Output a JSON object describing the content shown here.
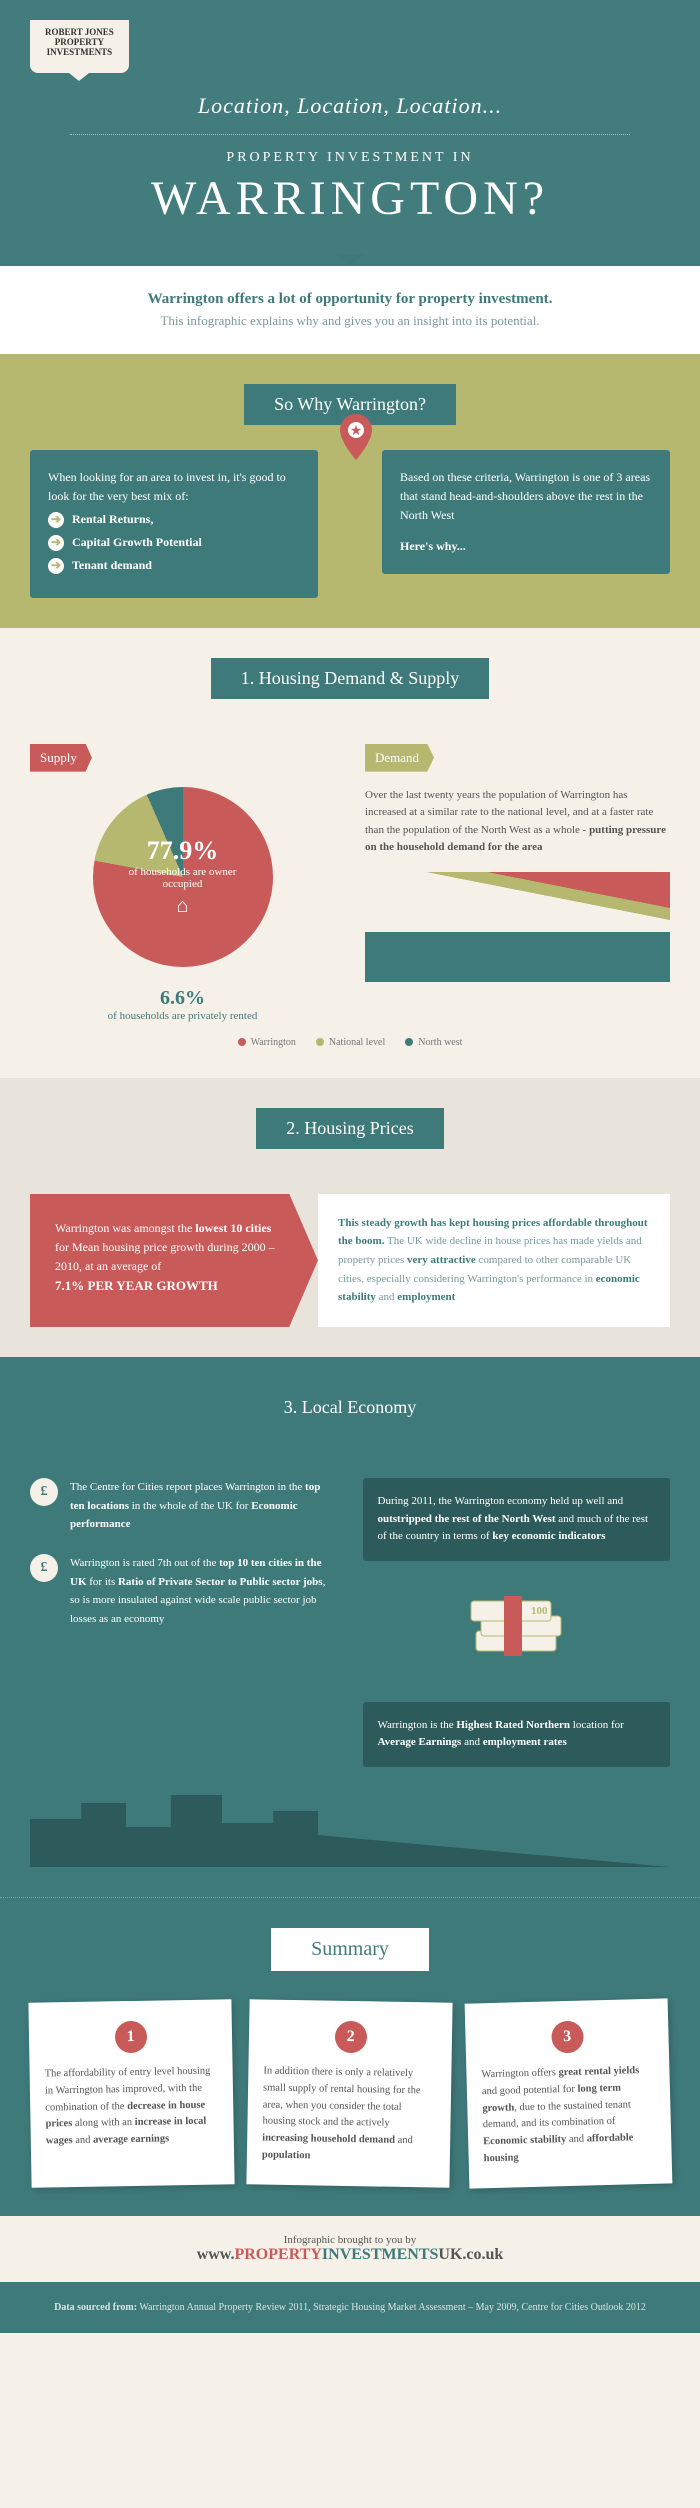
{
  "colors": {
    "teal": "#3f7a7a",
    "dark_teal": "#2d5a5a",
    "olive": "#b5b86e",
    "red": "#c85a5a",
    "cream": "#f5f0e8",
    "white": "#ffffff"
  },
  "header": {
    "logo_line1": "ROBERT JONES",
    "logo_line2": "PROPERTY",
    "logo_line3": "INVESTMENTS",
    "slogan": "Location, Location, Location...",
    "subtitle": "PROPERTY INVESTMENT IN",
    "big_title": "WARRINGTON?"
  },
  "intro": {
    "title": "Warrington offers a lot of opportunity for property investment.",
    "text": "This infographic explains why and gives you an insight into its potential."
  },
  "why": {
    "ribbon": "So Why Warrington?",
    "left_text": "When looking for an area to invest in, it's good to look for the very best mix of:",
    "bullets": [
      "Rental Returns,",
      "Capital Growth Potential",
      "Tenant demand"
    ],
    "right_text": "Based on these criteria, Warrington is one of 3 areas that stand head-and-shoulders above the rest in the North West",
    "right_cta": "Here's why..."
  },
  "demand": {
    "ribbon": "1. Housing Demand & Supply",
    "supply_label": "Supply",
    "demand_label": "Demand",
    "pie": {
      "owner_pct": "77.9%",
      "owner_label": "of households are owner occupied",
      "rented_pct": "6.6%",
      "rented_label": "of households are privately rented",
      "slices": [
        {
          "label": "owner",
          "value": 77.9,
          "color": "#c85a5a"
        },
        {
          "label": "other",
          "value": 15.5,
          "color": "#b5b86e"
        },
        {
          "label": "rented",
          "value": 6.6,
          "color": "#3f7a7a"
        }
      ]
    },
    "demand_text": "Over the last twenty years the population of Warrington has increased at a similar rate to the national level, and at a faster rate than the population of the North West as a whole - <b>putting pressure on the household demand for the area</b>",
    "legend": [
      {
        "label": "Warrington",
        "color": "#c85a5a"
      },
      {
        "label": "National level",
        "color": "#b5b86e"
      },
      {
        "label": "North west",
        "color": "#3f7a7a"
      }
    ]
  },
  "prices": {
    "ribbon": "2. Housing Prices",
    "arrow_text": "Warrington was amongst the <b>lowest 10 cities</b> for Mean housing price growth during 2000 – 2010, at an average of",
    "growth": "7.1% PER YEAR GROWTH",
    "body": "<strong>This steady growth has kept housing prices affordable throughout the boom.</strong> The UK wide decline in house prices has made yields and property prices <strong>very attractive</strong> compared to other comparable UK cities, especially considering Warrington's performance in <strong>economic stability</strong> and <strong>employment</strong>"
  },
  "economy": {
    "ribbon": "3. Local Economy",
    "left_items": [
      "The Centre for Cities report places Warrington in the <b>top ten locations</b> in the whole of the UK for <b>Economic performance</b>",
      "Warrington is rated 7th out of the <b>top 10 ten cities in the UK</b> for its <b>Ratio of Private Sector to Public sector jobs</b>, so is more insulated against wide scale public sector job losses as an economy"
    ],
    "right_box1": "During 2011, the Warrington economy held up well and <b>outstripped the rest of the North West</b> and much of the rest of the country in terms of <b>key economic indicators</b>",
    "right_box2": "Warrington is the <b>Highest Rated Northern</b> location for <b>Average Earnings</b> and <b>employment rates</b>"
  },
  "summary": {
    "ribbon": "Summary",
    "cards": [
      "The affordability of entry level housing in Warrington has improved, with the combination of the <b>decrease in house prices</b> along with an <b>increase in local wages</b> and <b>average earnings</b>",
      "In addition there is only a relatively small supply of rental housing for the area, when you consider the total housing stock and the actively <b>increasing household demand</b> and <b>population</b>",
      "Warrington offers <b>great rental yields</b> and good potential for <b>long term growth</b>, due to the sustained tenant demand, and its combination of <b>Economic stability</b> and <b>affordable housing</b>"
    ]
  },
  "footer": {
    "credit_label": "Infographic brought to you by",
    "brand_prefix": "www.",
    "brand_red": "PROPERTY",
    "brand_teal": "INVESTMENTS",
    "brand_dark": "UK",
    "brand_suffix": ".co.uk",
    "source": "<b>Data sourced from:</b> Warrington Annual Property Review 2011, Strategic Housing Market Assessment – May 2009, Centre for Cities Outlook 2012"
  }
}
